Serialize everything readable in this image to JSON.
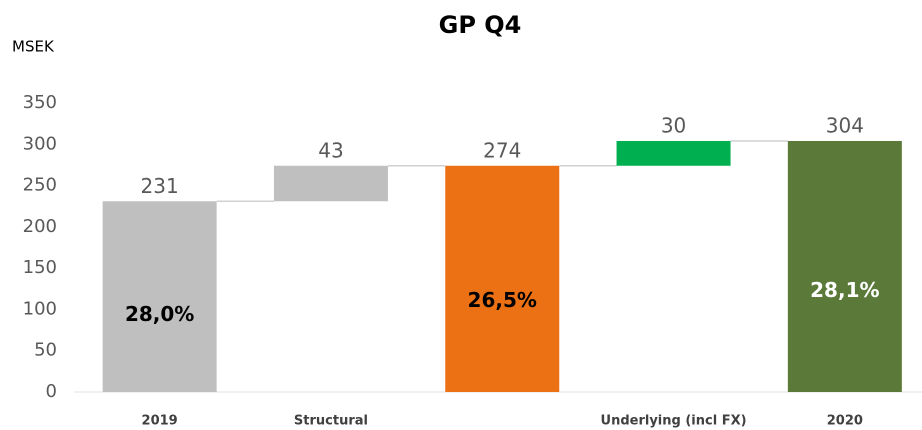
{
  "chart_data": {
    "type": "waterfall",
    "title": "GP Q4",
    "y_label": "MSEK",
    "categories": [
      "2019",
      "Structural",
      null,
      "Underlying (incl FX)",
      "2020"
    ],
    "values": [
      231,
      43,
      274,
      30,
      304
    ],
    "measure": [
      "total",
      "relative",
      "total",
      "relative",
      "total"
    ],
    "colors": [
      "#bfbfbf",
      "#bfbfbf",
      "#ec7014",
      "#00b050",
      "#5b7a3a"
    ],
    "inner_labels": [
      "28,0%",
      null,
      "26,5%",
      null,
      "28,1%"
    ],
    "inner_label_colors": [
      "#000000",
      null,
      "#000000",
      null,
      "#ffffff"
    ],
    "ylim": [
      0,
      350
    ],
    "yticks": [
      0,
      50,
      100,
      150,
      200,
      250,
      300,
      350
    ],
    "grid": false
  }
}
